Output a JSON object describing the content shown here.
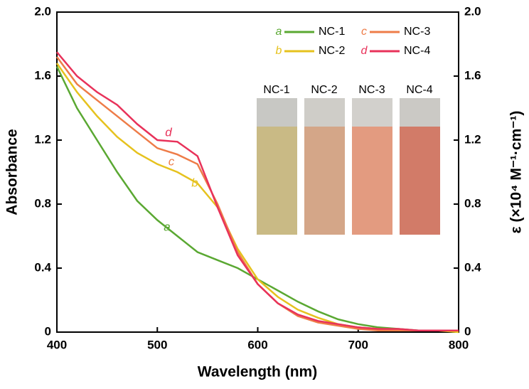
{
  "chart_data": {
    "type": "line",
    "xlabel": "Wavelength (nm)",
    "ylabel": "Absorbance",
    "y2label": "ε (×10⁴ M⁻¹·cm⁻¹)",
    "x": [
      400,
      420,
      440,
      460,
      480,
      500,
      520,
      540,
      560,
      580,
      600,
      620,
      640,
      660,
      680,
      700,
      720,
      740,
      760,
      780,
      800
    ],
    "series": [
      {
        "name": "NC-1",
        "label": "a",
        "color": "#5aa832",
        "values": [
          1.66,
          1.4,
          1.2,
          1.0,
          0.82,
          0.7,
          0.6,
          0.5,
          0.45,
          0.4,
          0.33,
          0.26,
          0.19,
          0.13,
          0.08,
          0.05,
          0.03,
          0.02,
          0.01,
          0.01,
          0.01
        ]
      },
      {
        "name": "NC-2",
        "label": "b",
        "color": "#e6c21e",
        "values": [
          1.68,
          1.5,
          1.35,
          1.22,
          1.12,
          1.05,
          1.0,
          0.93,
          0.78,
          0.52,
          0.33,
          0.22,
          0.14,
          0.09,
          0.05,
          0.03,
          0.02,
          0.01,
          0.01,
          0.01,
          0
        ]
      },
      {
        "name": "NC-3",
        "label": "c",
        "color": "#ee7c48",
        "values": [
          1.72,
          1.55,
          1.45,
          1.35,
          1.25,
          1.15,
          1.11,
          1.05,
          0.8,
          0.5,
          0.3,
          0.18,
          0.1,
          0.06,
          0.04,
          0.02,
          0.01,
          0.01,
          0.01,
          0.01,
          0.01
        ]
      },
      {
        "name": "NC-4",
        "label": "d",
        "color": "#e8325a",
        "values": [
          1.75,
          1.6,
          1.5,
          1.42,
          1.3,
          1.2,
          1.19,
          1.1,
          0.78,
          0.48,
          0.3,
          0.18,
          0.11,
          0.07,
          0.05,
          0.03,
          0.02,
          0.02,
          0.01,
          0.01,
          0.01
        ]
      }
    ],
    "xlim": [
      400,
      800
    ],
    "xticks": [
      400,
      500,
      600,
      700,
      800
    ],
    "ylim": [
      0,
      2
    ],
    "yticks": [
      0,
      0.4,
      0.8,
      1.2,
      1.6,
      {
        "value": 2,
        "label": "2.0"
      }
    ],
    "y2lim": [
      0,
      2
    ],
    "y2ticks": [
      0,
      0.4,
      0.8,
      1.2,
      1.6,
      {
        "value": 2,
        "label": "2.0"
      }
    ]
  }
}
